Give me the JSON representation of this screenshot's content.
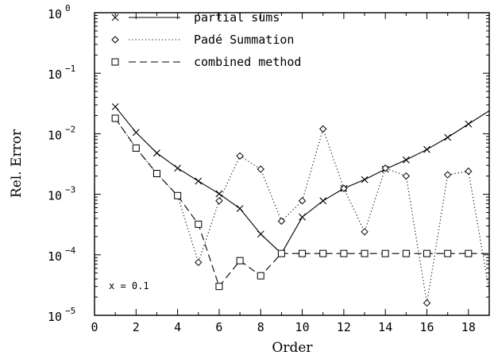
{
  "chart_data": {
    "type": "line",
    "xlabel": "Order",
    "ylabel": "Rel. Error",
    "xlim": [
      0,
      19
    ],
    "ylim": [
      1e-05,
      1
    ],
    "yscale": "log",
    "xticks": [
      0,
      2,
      4,
      6,
      8,
      10,
      12,
      14,
      16,
      18
    ],
    "yticks": [
      {
        "base": "10",
        "exp": "−5",
        "value": 1e-05
      },
      {
        "base": "10",
        "exp": "−4",
        "value": 0.0001
      },
      {
        "base": "10",
        "exp": "−3",
        "value": 0.001
      },
      {
        "base": "10",
        "exp": "−2",
        "value": 0.01
      },
      {
        "base": "10",
        "exp": "−1",
        "value": 0.1
      },
      {
        "base": "10",
        "exp": "0",
        "value": 1
      }
    ],
    "legend_position": "top-left",
    "annotation": "x = 0.1",
    "series": [
      {
        "name": "partial sums",
        "marker": "x",
        "line": "solid",
        "x": [
          1,
          2,
          3,
          4,
          5,
          6,
          7,
          8,
          9,
          10,
          11,
          12,
          13,
          14,
          15,
          16,
          17,
          18,
          19
        ],
        "y": [
          0.028,
          0.0105,
          0.0048,
          0.0027,
          0.00165,
          0.00102,
          0.00058,
          0.00022,
          0.000105,
          0.00042,
          0.00078,
          0.00125,
          0.00175,
          0.0026,
          0.0037,
          0.0055,
          0.0087,
          0.0145,
          0.024
        ]
      },
      {
        "name": "Padé Summation",
        "marker": "diamond",
        "line": "dotted",
        "x": [
          1,
          2,
          3,
          4,
          5,
          6,
          7,
          8,
          9,
          10,
          11,
          12,
          13,
          14,
          15,
          16,
          17,
          18,
          19
        ],
        "y": [
          0.018,
          0.0058,
          0.0022,
          0.00095,
          7.5e-05,
          0.00078,
          0.0043,
          0.0026,
          0.00036,
          0.00078,
          0.012,
          0.00125,
          0.00024,
          0.0027,
          0.002,
          1.6e-05,
          0.0021,
          0.0024,
          2.5e-05
        ]
      },
      {
        "name": "combined method",
        "marker": "square",
        "line": "dashed",
        "x": [
          1,
          2,
          3,
          4,
          5,
          6,
          7,
          8,
          9,
          10,
          11,
          12,
          13,
          14,
          15,
          16,
          17,
          18,
          19
        ],
        "y": [
          0.018,
          0.0058,
          0.0022,
          0.00095,
          0.00032,
          3e-05,
          8e-05,
          4.5e-05,
          0.000105,
          0.000105,
          0.000105,
          0.000105,
          0.000105,
          0.000105,
          0.000105,
          0.000105,
          0.000105,
          0.000105,
          0.000105
        ]
      }
    ]
  }
}
